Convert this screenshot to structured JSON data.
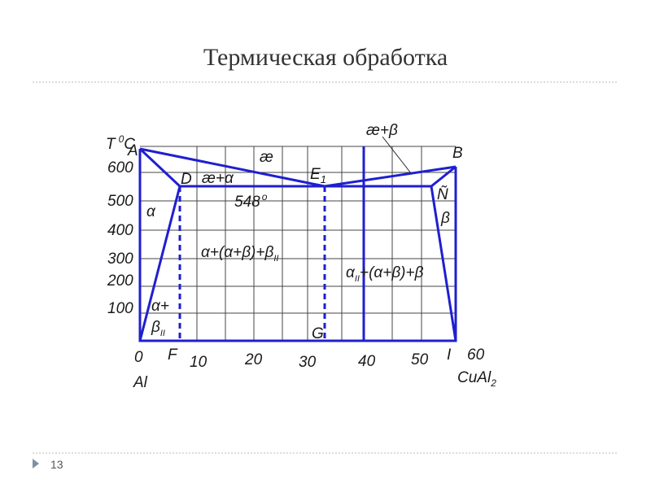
{
  "slide": {
    "title": "Термическая обработка",
    "number": "13"
  },
  "diagram": {
    "y_unit": {
      "symbol": "T",
      "degree": "0",
      "unit": "C"
    },
    "y_ticks": [
      "600",
      "500",
      "400",
      "300",
      "200",
      "100"
    ],
    "x_ticks": [
      "0",
      "F",
      "10",
      "20",
      "30",
      "40",
      "50",
      "I",
      "60"
    ],
    "x_ends": {
      "left": "Al",
      "right": "CuAl",
      "right_sub": "2"
    },
    "points": {
      "A": "A",
      "B": "B",
      "D": "D",
      "E": "E",
      "E_sub": "1",
      "G": "G",
      "N": "Ñ"
    },
    "regions": {
      "liquid": "æ",
      "liquid_alpha": "æ+α",
      "liquid_beta": "æ+β",
      "eutectic_temp": "548",
      "eutectic_deg": "o",
      "alpha": "α",
      "beta": "β",
      "alpha_beta2_top": "α+",
      "alpha_beta2_bottom": "β",
      "alpha_beta2_sub": "II",
      "hypo": "α+(α+β)+β",
      "hypo_sub": "II",
      "hyper_alpha": "α",
      "hyper_sub": "II",
      "hyper_rest": "+(α+β)+β"
    }
  }
}
